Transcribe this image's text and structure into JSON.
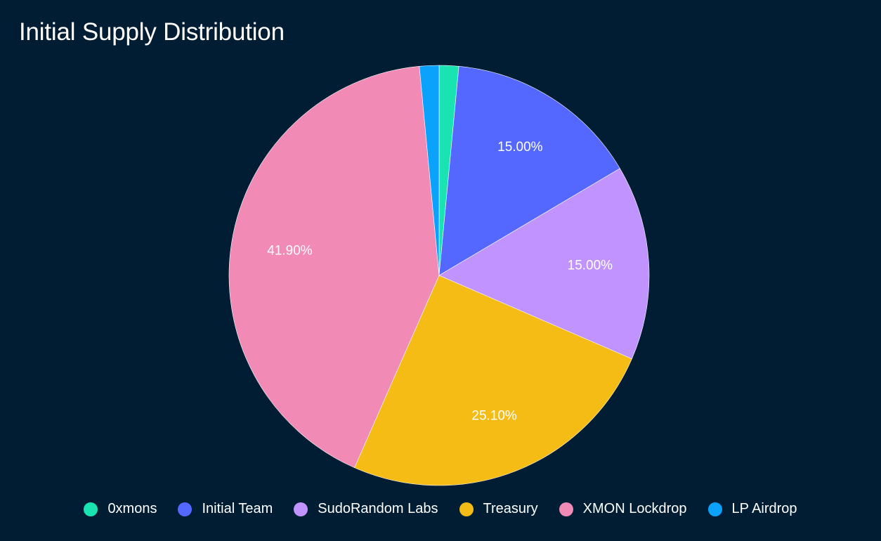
{
  "chart_data": {
    "type": "pie",
    "title": "Initial Supply Distribution",
    "slices": [
      {
        "label": "0xmons",
        "value": 1.5,
        "color": "#19e3b1",
        "data_label": ""
      },
      {
        "label": "Initial Team",
        "value": 15.0,
        "color": "#5468ff",
        "data_label": "15.00%"
      },
      {
        "label": "SudoRandom Labs",
        "value": 15.0,
        "color": "#c193ff",
        "data_label": "15.00%"
      },
      {
        "label": "Treasury",
        "value": 25.1,
        "color": "#f5bc16",
        "data_label": "25.10%"
      },
      {
        "label": "XMON Lockdrop",
        "value": 41.9,
        "color": "#f18ab4",
        "data_label": "41.90%"
      },
      {
        "label": "LP Airdrop",
        "value": 1.5,
        "color": "#0aa2fa",
        "data_label": ""
      }
    ],
    "legend_position": "bottom"
  }
}
